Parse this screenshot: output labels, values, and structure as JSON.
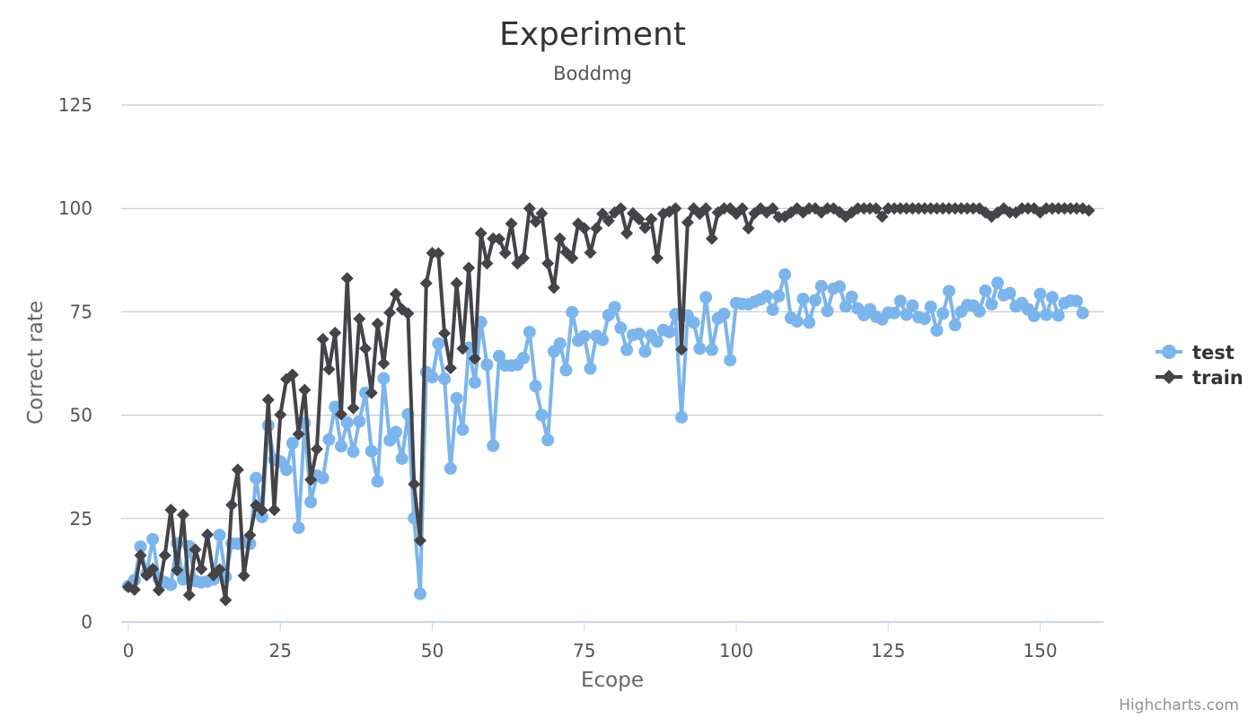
{
  "credits": "Highcharts.com",
  "chart_data": {
    "type": "line",
    "title": "Experiment",
    "subtitle": "Boddmg",
    "xlabel": "Ecope",
    "ylabel": "Correct rate",
    "xlim": [
      0,
      160
    ],
    "ylim": [
      0,
      125
    ],
    "x_ticks": [
      "0",
      "25",
      "50",
      "75",
      "100",
      "125",
      "150"
    ],
    "y_ticks": [
      "0",
      "25",
      "50",
      "75",
      "100",
      "125"
    ],
    "grid": true,
    "legend_position": "right",
    "series": [
      {
        "name": "test",
        "color": "#7cb5ec",
        "marker": "circle",
        "values": [
          8.7,
          10.1,
          18.2,
          11.7,
          20.0,
          10.5,
          9.6,
          9.0,
          19.0,
          10.3,
          18.3,
          9.9,
          9.6,
          9.8,
          10.3,
          21.0,
          10.9,
          19.0,
          18.9,
          19.3,
          18.9,
          34.8,
          25.4,
          47.5,
          39.2,
          38.8,
          36.8,
          43.2,
          22.8,
          48.1,
          29.0,
          35.4,
          34.8,
          44.1,
          52.0,
          42.5,
          48.2,
          41.2,
          48.5,
          55.4,
          41.3,
          34.0,
          58.9,
          43.9,
          45.9,
          39.5,
          50.2,
          25.1,
          6.8,
          60.4,
          59.2,
          67.3,
          58.8,
          37.1,
          54.1,
          46.5,
          66.3,
          57.9,
          72.5,
          62.2,
          42.6,
          64.3,
          62.0,
          62.0,
          62.2,
          63.8,
          70.1,
          57.0,
          50.0,
          44.0,
          65.4,
          67.3,
          60.9,
          74.9,
          68.0,
          69.1,
          61.3,
          69.2,
          68.2,
          74.2,
          76.1,
          71.1,
          65.8,
          69.4,
          69.7,
          65.4,
          69.3,
          67.8,
          70.6,
          70.1,
          74.4,
          49.5,
          74.1,
          72.4,
          66.1,
          78.5,
          65.8,
          73.4,
          74.5,
          63.3,
          77.1,
          76.9,
          76.8,
          77.4,
          78.0,
          78.8,
          75.5,
          78.8,
          84.0,
          73.5,
          72.7,
          78.1,
          72.4,
          77.8,
          81.2,
          75.2,
          80.6,
          81.1,
          76.3,
          78.6,
          75.8,
          74.2,
          75.6,
          73.8,
          73.2,
          74.8,
          74.7,
          77.6,
          74.3,
          76.5,
          73.7,
          73.3,
          76.2,
          70.5,
          74.6,
          80.0,
          71.8,
          75.0,
          76.6,
          76.5,
          75.1,
          80.1,
          76.8,
          82.0,
          79.0,
          79.5,
          76.3,
          77.1,
          75.6,
          74.0,
          79.3,
          74.3,
          78.5,
          74.1,
          77.1,
          77.7,
          77.6,
          74.7
        ]
      },
      {
        "name": "train",
        "color": "#434348",
        "marker": "diamond",
        "values": [
          8.5,
          7.8,
          16.1,
          11.3,
          12.8,
          7.7,
          16.1,
          27.1,
          12.5,
          25.9,
          6.5,
          17.5,
          12.8,
          21.1,
          11.3,
          12.7,
          5.3,
          28.3,
          36.8,
          11.2,
          21.0,
          28.2,
          27.0,
          53.7,
          27.1,
          50.1,
          58.7,
          59.8,
          45.4,
          56.1,
          34.4,
          41.8,
          68.4,
          61.1,
          69.9,
          50.2,
          83.1,
          51.7,
          73.3,
          66.1,
          55.4,
          72.1,
          62.5,
          74.8,
          79.3,
          75.6,
          74.6,
          33.3,
          19.7,
          81.9,
          89.2,
          89.1,
          69.8,
          61.4,
          81.9,
          66.1,
          85.6,
          63.7,
          94.0,
          86.7,
          92.7,
          92.6,
          89.2,
          96.3,
          86.7,
          88.0,
          100.0,
          96.8,
          98.8,
          86.7,
          80.8,
          92.7,
          89.4,
          88.0,
          96.3,
          95.2,
          89.3,
          95.2,
          98.7,
          97.0,
          99.0,
          100.0,
          94.0,
          98.8,
          97.4,
          95.3,
          97.4,
          88.0,
          98.7,
          99.2,
          100.0,
          65.9,
          96.6,
          100.0,
          98.7,
          100.0,
          92.7,
          99.0,
          100.0,
          100.0,
          98.7,
          100.0,
          95.2,
          98.8,
          100.0,
          99.0,
          100.0,
          97.9,
          98.0,
          99.0,
          100.0,
          99.0,
          100.0,
          100.0,
          99.0,
          100.0,
          100.0,
          99.1,
          98.0,
          99.0,
          100.0,
          100.0,
          100.0,
          100.0,
          98.0,
          100.0,
          100.0,
          100.0,
          100.0,
          100.0,
          100.0,
          100.0,
          100.0,
          100.0,
          100.0,
          100.0,
          100.0,
          100.0,
          100.0,
          100.0,
          100.0,
          99.0,
          98.0,
          99.0,
          100.0,
          99.0,
          99.0,
          100.0,
          100.0,
          100.0,
          99.0,
          100.0,
          100.0,
          100.0,
          100.0,
          100.0,
          100.0,
          100.0,
          99.5
        ]
      }
    ]
  }
}
